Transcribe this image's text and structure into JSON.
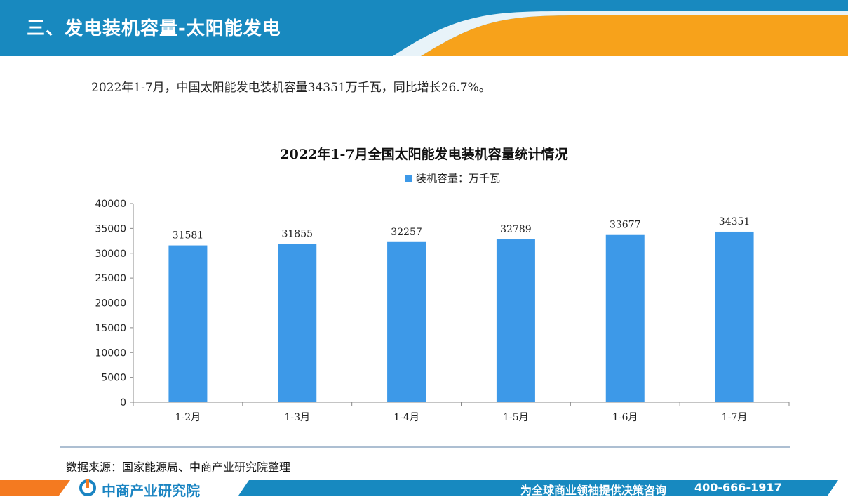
{
  "header": {
    "title": "三、发电装机容量-太阳能发电"
  },
  "summary": "2022年1-7月，中国太阳能发电装机容量34351万千瓦，同比增长26.7%。",
  "chart_data": {
    "type": "bar",
    "title": "2022年1-7月全国太阳能发电装机容量统计情况",
    "categories": [
      "1-2月",
      "1-3月",
      "1-4月",
      "1-5月",
      "1-6月",
      "1-7月"
    ],
    "series": [
      {
        "name": "装机容量：万千瓦",
        "values": [
          31581,
          31855,
          32257,
          32789,
          33677,
          34351
        ]
      }
    ],
    "ylim": [
      0,
      40000
    ],
    "yticks": [
      0,
      5000,
      10000,
      15000,
      20000,
      25000,
      30000,
      35000,
      40000
    ],
    "xlabel": "",
    "ylabel": "",
    "grid": false,
    "legend": "top-center",
    "bar_color": "#3d99e8"
  },
  "source": "数据来源：国家能源局、中商产业研究院整理",
  "footer": {
    "logo_text": "中商产业研究院",
    "slogan": "为全球商业领袖提供决策咨询",
    "phone": "400-666-1917"
  },
  "colors": {
    "header_blue": "#1889bf",
    "accent_orange": "#f7a21b",
    "footer_blue": "#1789c0"
  }
}
